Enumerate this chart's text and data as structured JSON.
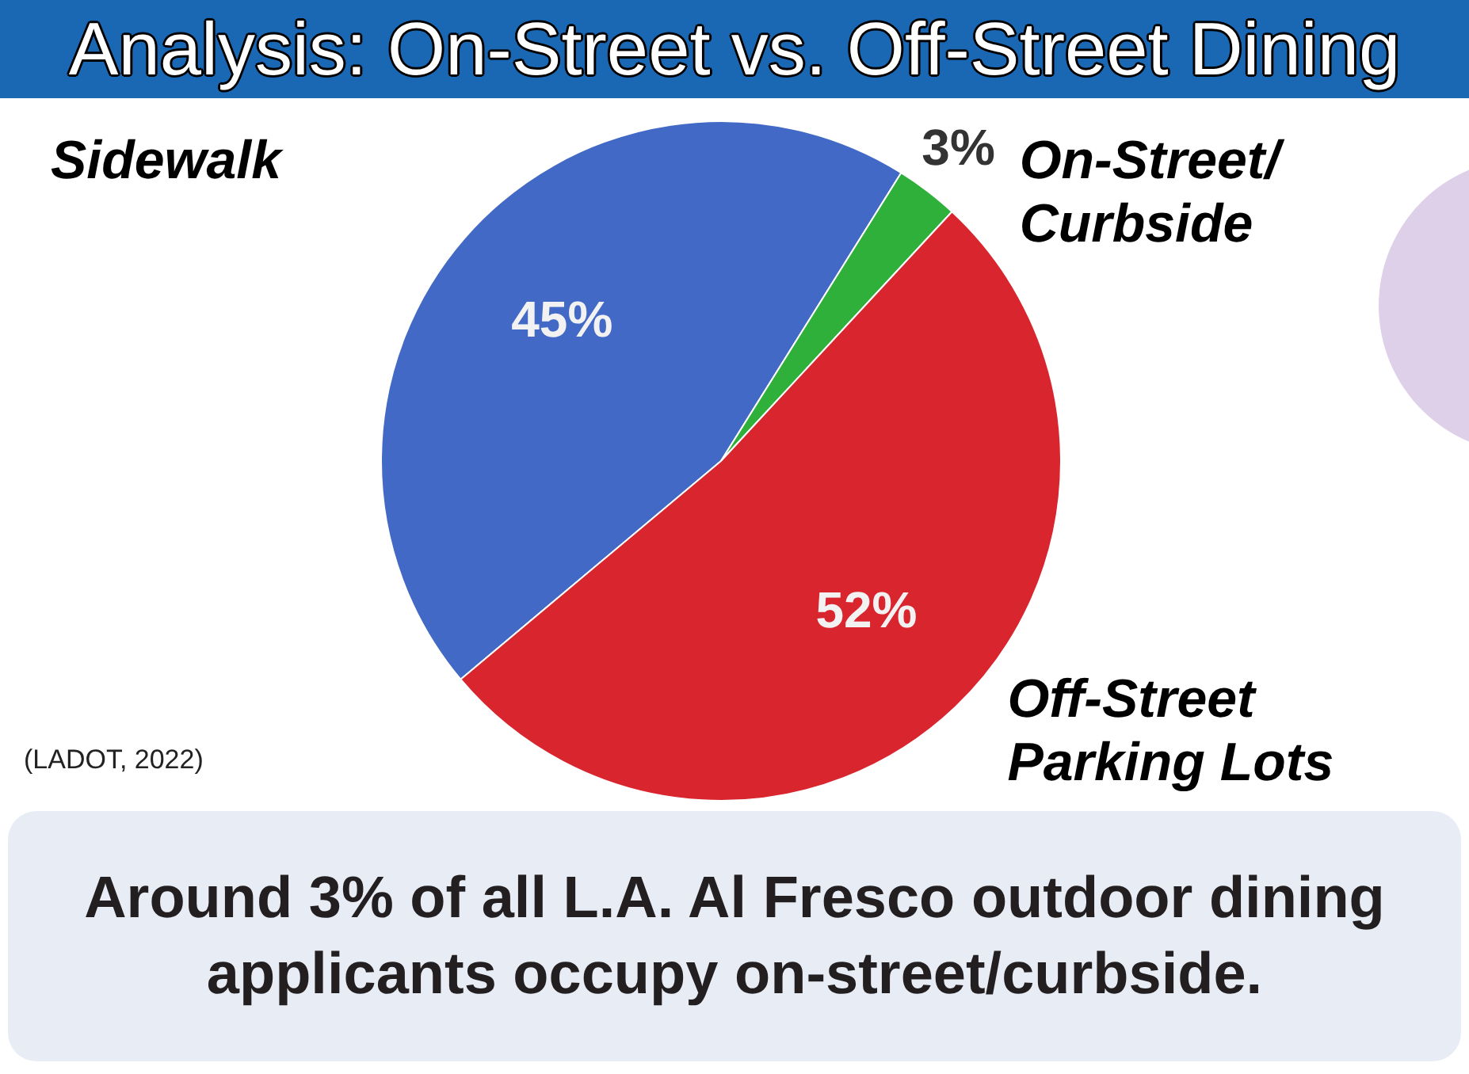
{
  "chart_data": {
    "type": "pie",
    "title": "Analysis: On-Street vs. Off-Street Dining",
    "categories": [
      "Sidewalk",
      "On-Street/Curbside",
      "Off-Street Parking Lots"
    ],
    "values": [
      45,
      3,
      52
    ],
    "colors": [
      "#4169c5",
      "#2eb03a",
      "#d9252e"
    ],
    "value_labels": [
      "45%",
      "3%",
      "52%"
    ],
    "annotations": [
      "(LADOT, 2022)",
      "Around 3% of all L.A. Al Fresco outdoor dining applicants occupy on-street/curbside."
    ]
  }
}
